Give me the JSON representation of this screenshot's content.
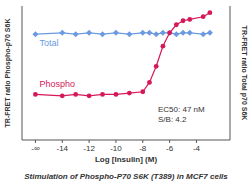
{
  "chart_data": {
    "type": "line",
    "title": "Stimulation of Phospho-P70 S6K (T389) in MCF7 cells",
    "x_label": "Log [Insulin] (M)",
    "y_label": "TR-FRET ratio Phospho-p70 S6K",
    "y2_label": "TR-FRET ratio Total p70 S6K",
    "x": [
      -16,
      -14,
      -13,
      -12,
      -11,
      -10,
      -9,
      -8,
      -7.5,
      -7,
      -6.5,
      -6,
      -5.5,
      -5,
      -4.5,
      -3.5,
      -3
    ],
    "series": [
      {
        "name": "Total",
        "color": "#6b9ae0",
        "marker": "diamond",
        "axis": "y2",
        "values": [
          79,
          80,
          79,
          80,
          79,
          80,
          79,
          80,
          80,
          79,
          80,
          80,
          79,
          80,
          80,
          79,
          80
        ]
      },
      {
        "name": "Phospho",
        "color": "#d6185a",
        "marker": "circle",
        "values": [
          34,
          33,
          34,
          33,
          34,
          34,
          35,
          36,
          43,
          55,
          70,
          80,
          86,
          89,
          90,
          92,
          95
        ]
      }
    ],
    "xlim": [
      -17,
      -1.5
    ],
    "xticks": [
      {
        "value": -16,
        "label": "-∞"
      },
      -14,
      -12,
      -10,
      -8,
      -6,
      -4
    ],
    "ylim": [
      0,
      100
    ],
    "y2lim": [
      0,
      100
    ],
    "tick_labels": "x",
    "annotations": [
      "EC50: 47 nM",
      "S/B: 4.2"
    ]
  }
}
